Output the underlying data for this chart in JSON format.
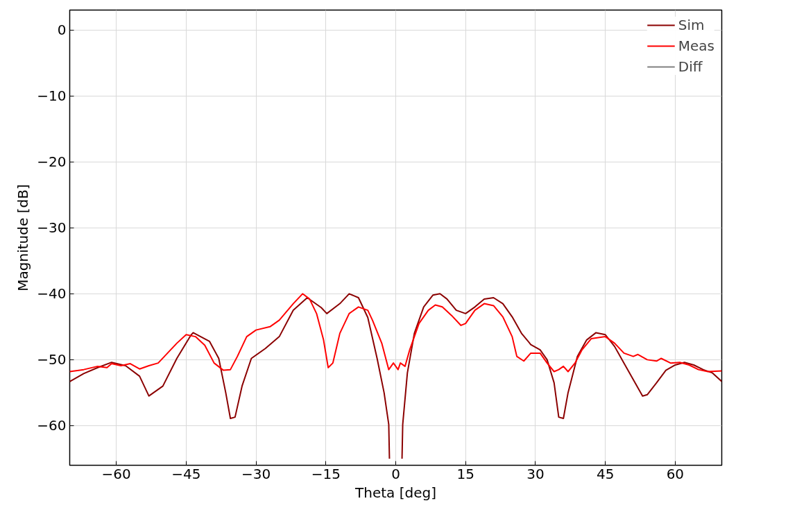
{
  "chart_data": {
    "type": "line",
    "xlabel": "Theta [deg]",
    "ylabel": "Magnitude [dB]",
    "xlim": [
      -70,
      70
    ],
    "ylim": [
      -66,
      3
    ],
    "xticks": [
      -60,
      -45,
      -30,
      -15,
      0,
      15,
      30,
      45,
      60
    ],
    "yticks": [
      -60,
      -50,
      -40,
      -30,
      -20,
      -10,
      0
    ],
    "grid": true,
    "legend": "top right",
    "line_style": "solid",
    "series": [
      {
        "name": "Sim",
        "color": "#8b0000",
        "x": [
          -70,
          -67,
          -64,
          -61,
          -58,
          -55,
          -53,
          -50,
          -47,
          -44,
          -43.5,
          -40,
          -38,
          -36.5,
          -35.5,
          -34.5,
          -33,
          -31,
          -28,
          -25,
          -22,
          -19,
          -16,
          -14.8,
          -12,
          -10,
          -8,
          -6,
          -4,
          -2.5,
          -1.5,
          -1.35,
          0,
          1.35,
          1.5,
          2.5,
          4,
          6,
          8,
          9.5,
          11,
          13,
          15,
          17,
          19,
          21,
          23,
          25,
          27,
          29,
          31,
          32.5,
          34,
          35,
          36,
          37,
          39,
          41,
          43,
          45,
          47,
          49,
          51,
          53,
          54,
          56,
          58,
          60,
          62,
          64,
          66,
          68,
          70
        ],
        "values": [
          -53.3,
          -52.1,
          -51.2,
          -50.4,
          -50.9,
          -52.5,
          -55.5,
          -54,
          -49.8,
          -46.3,
          -45.9,
          -47.2,
          -49.8,
          -55,
          -58.9,
          -58.7,
          -54,
          -49.8,
          -48.3,
          -46.5,
          -42.5,
          -40.6,
          -42.1,
          -43,
          -41.5,
          -40,
          -40.6,
          -43.6,
          -49.8,
          -55,
          -59.8,
          -65,
          null,
          -65,
          -59.8,
          -52,
          -46,
          -42,
          -40.2,
          -40,
          -40.8,
          -42.5,
          -43,
          -42,
          -40.8,
          -40.6,
          -41.5,
          -43.5,
          -46,
          -47.7,
          -48.5,
          -50,
          -53.5,
          -58.7,
          -58.9,
          -55,
          -49.5,
          -47,
          -45.9,
          -46.2,
          -48,
          -50.5,
          -53,
          -55.5,
          -55.3,
          -53.5,
          -51.6,
          -50.8,
          -50.4,
          -50.8,
          -51.5,
          -52,
          -53.3
        ]
      },
      {
        "name": "Meas",
        "color": "#ff0000",
        "x": [
          -70,
          -67,
          -64,
          -62,
          -61,
          -59,
          -57,
          -55,
          -53,
          -51,
          -49,
          -47,
          -45,
          -43,
          -41,
          -39,
          -37,
          -35.5,
          -34,
          -32,
          -30,
          -27,
          -25,
          -22,
          -20,
          -18.5,
          -17,
          -15.5,
          -14.5,
          -13.5,
          -12,
          -10,
          -8,
          -6,
          -5,
          -3,
          -1.5,
          -0.5,
          0.5,
          1,
          2,
          3,
          5,
          7,
          8.5,
          10,
          12,
          14,
          15,
          17,
          19,
          21,
          23,
          25,
          26,
          27.5,
          29,
          31,
          32.5,
          34,
          35,
          36,
          37,
          38.5,
          40,
          42,
          45,
          47,
          49,
          51,
          52,
          54,
          56,
          57,
          59,
          61,
          63,
          65,
          67,
          70
        ],
        "values": [
          -51.8,
          -51.5,
          -51,
          -51.2,
          -50.6,
          -50.9,
          -50.6,
          -51.4,
          -50.9,
          -50.5,
          -49,
          -47.5,
          -46.2,
          -46.5,
          -47.8,
          -50.5,
          -51.6,
          -51.5,
          -49.5,
          -46.5,
          -45.5,
          -45,
          -44,
          -41.5,
          -40,
          -40.8,
          -43,
          -47,
          -51.2,
          -50.5,
          -46,
          -43,
          -42,
          -42.5,
          -44,
          -47.5,
          -51.5,
          -50.5,
          -51.5,
          -50.5,
          -51,
          -48.5,
          -44.5,
          -42.5,
          -41.7,
          -42,
          -43.3,
          -44.8,
          -44.5,
          -42.5,
          -41.5,
          -41.8,
          -43.5,
          -46.5,
          -49.5,
          -50.2,
          -49,
          -49,
          -50.5,
          -51.8,
          -51.5,
          -51,
          -51.8,
          -50.5,
          -48.5,
          -46.8,
          -46.5,
          -47.5,
          -49,
          -49.5,
          -49.2,
          -50,
          -50.2,
          -49.8,
          -50.5,
          -50.4,
          -50.8,
          -51.5,
          -51.8,
          -51.7
        ]
      },
      {
        "name": "Diff",
        "color": "#808080"
      }
    ]
  }
}
